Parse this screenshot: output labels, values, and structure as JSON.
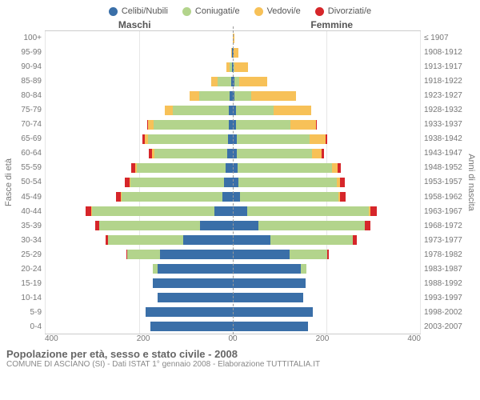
{
  "legend": [
    {
      "label": "Celibi/Nubili",
      "color": "#3a6fa8"
    },
    {
      "label": "Coniugati/e",
      "color": "#b3d48c"
    },
    {
      "label": "Vedovi/e",
      "color": "#f7c158"
    },
    {
      "label": "Divorziati/e",
      "color": "#d6262a"
    }
  ],
  "headers": {
    "male": "Maschi",
    "female": "Femmine"
  },
  "yaxis_left_label": "Fasce di età",
  "yaxis_right_label": "Anni di nascita",
  "age_groups": [
    "100+",
    "95-99",
    "90-94",
    "85-89",
    "80-84",
    "75-79",
    "70-74",
    "65-69",
    "60-64",
    "55-59",
    "50-54",
    "45-49",
    "40-44",
    "35-39",
    "30-34",
    "25-29",
    "20-24",
    "15-19",
    "10-14",
    "5-9",
    "0-4"
  ],
  "birth_years": [
    "≤ 1907",
    "1908-1912",
    "1913-1917",
    "1918-1922",
    "1923-1927",
    "1928-1932",
    "1933-1937",
    "1938-1942",
    "1943-1947",
    "1948-1952",
    "1953-1957",
    "1958-1962",
    "1963-1967",
    "1968-1972",
    "1973-1977",
    "1978-1982",
    "1983-1987",
    "1988-1992",
    "1993-1997",
    "1998-2002",
    "2003-2007"
  ],
  "max_value": 400,
  "xticks_left": [
    "400",
    "200",
    "0"
  ],
  "xticks_right": [
    "0",
    "200",
    "400"
  ],
  "colors": {
    "single": "#3a6fa8",
    "married": "#b3d48c",
    "widowed": "#f7c158",
    "divorced": "#d6262a",
    "grid": "#e7e7e7",
    "center": "#999999"
  },
  "male": [
    {
      "s": 0,
      "m": 0,
      "w": 0,
      "d": 0
    },
    {
      "s": 2,
      "m": 0,
      "w": 2,
      "d": 0
    },
    {
      "s": 2,
      "m": 4,
      "w": 8,
      "d": 0
    },
    {
      "s": 4,
      "m": 28,
      "w": 14,
      "d": 0
    },
    {
      "s": 6,
      "m": 66,
      "w": 20,
      "d": 0
    },
    {
      "s": 8,
      "m": 120,
      "w": 16,
      "d": 0
    },
    {
      "s": 9,
      "m": 160,
      "w": 12,
      "d": 2
    },
    {
      "s": 10,
      "m": 170,
      "w": 8,
      "d": 4
    },
    {
      "s": 12,
      "m": 155,
      "w": 5,
      "d": 6
    },
    {
      "s": 15,
      "m": 190,
      "w": 3,
      "d": 8
    },
    {
      "s": 18,
      "m": 200,
      "w": 2,
      "d": 9
    },
    {
      "s": 22,
      "m": 215,
      "w": 1,
      "d": 10
    },
    {
      "s": 40,
      "m": 260,
      "w": 1,
      "d": 12
    },
    {
      "s": 70,
      "m": 215,
      "w": 0,
      "d": 8
    },
    {
      "s": 105,
      "m": 160,
      "w": 0,
      "d": 5
    },
    {
      "s": 155,
      "m": 70,
      "w": 0,
      "d": 2
    },
    {
      "s": 160,
      "m": 10,
      "w": 0,
      "d": 0
    },
    {
      "s": 170,
      "m": 0,
      "w": 0,
      "d": 0
    },
    {
      "s": 160,
      "m": 0,
      "w": 0,
      "d": 0
    },
    {
      "s": 185,
      "m": 0,
      "w": 0,
      "d": 0
    },
    {
      "s": 175,
      "m": 0,
      "w": 0,
      "d": 0
    }
  ],
  "female": [
    {
      "s": 0,
      "m": 0,
      "w": 3,
      "d": 0
    },
    {
      "s": 2,
      "m": 0,
      "w": 10,
      "d": 0
    },
    {
      "s": 2,
      "m": 2,
      "w": 28,
      "d": 0
    },
    {
      "s": 3,
      "m": 10,
      "w": 60,
      "d": 0
    },
    {
      "s": 4,
      "m": 35,
      "w": 95,
      "d": 0
    },
    {
      "s": 6,
      "m": 80,
      "w": 80,
      "d": 0
    },
    {
      "s": 7,
      "m": 115,
      "w": 55,
      "d": 2
    },
    {
      "s": 8,
      "m": 155,
      "w": 35,
      "d": 3
    },
    {
      "s": 9,
      "m": 160,
      "w": 20,
      "d": 5
    },
    {
      "s": 11,
      "m": 200,
      "w": 12,
      "d": 7
    },
    {
      "s": 12,
      "m": 210,
      "w": 6,
      "d": 10
    },
    {
      "s": 15,
      "m": 210,
      "w": 3,
      "d": 12
    },
    {
      "s": 30,
      "m": 260,
      "w": 2,
      "d": 15
    },
    {
      "s": 55,
      "m": 225,
      "w": 1,
      "d": 12
    },
    {
      "s": 80,
      "m": 175,
      "w": 0,
      "d": 8
    },
    {
      "s": 120,
      "m": 80,
      "w": 0,
      "d": 4
    },
    {
      "s": 145,
      "m": 12,
      "w": 0,
      "d": 0
    },
    {
      "s": 155,
      "m": 0,
      "w": 0,
      "d": 0
    },
    {
      "s": 150,
      "m": 0,
      "w": 0,
      "d": 0
    },
    {
      "s": 170,
      "m": 0,
      "w": 0,
      "d": 0
    },
    {
      "s": 160,
      "m": 0,
      "w": 0,
      "d": 0
    }
  ],
  "footer": {
    "title": "Popolazione per età, sesso e stato civile - 2008",
    "subtitle": "COMUNE DI ASCIANO (SI) - Dati ISTAT 1° gennaio 2008 - Elaborazione TUTTITALIA.IT"
  }
}
